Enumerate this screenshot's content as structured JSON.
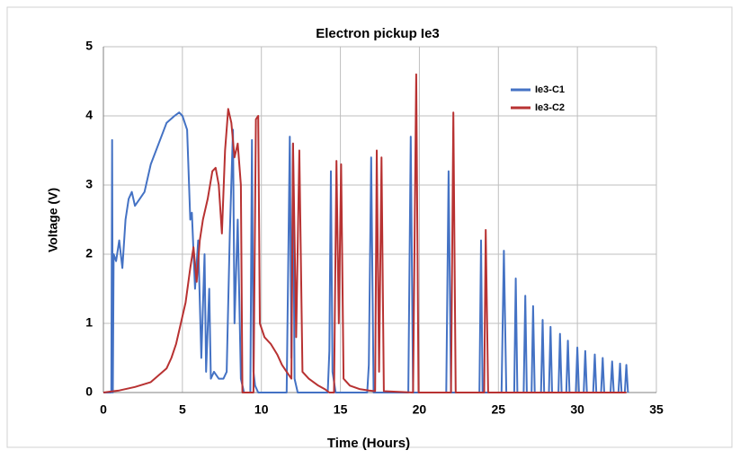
{
  "chart_data": {
    "type": "line",
    "title": "Electron pickup Ie3",
    "xlabel": "Time (Hours)",
    "ylabel": "Voltage (V)",
    "xlim": [
      0,
      35
    ],
    "xticks": [
      0,
      5,
      10,
      15,
      20,
      25,
      30,
      35
    ],
    "ylim": [
      0,
      5
    ],
    "yticks": [
      0,
      1,
      2,
      3,
      4,
      5
    ],
    "grid": true,
    "legend": "upper-right",
    "series": [
      {
        "name": "Ie3-C1",
        "color": "#4472c4",
        "x": [
          0,
          0.5,
          0.55,
          0.6,
          0.65,
          0.8,
          1.0,
          1.2,
          1.4,
          1.6,
          1.8,
          2.0,
          2.3,
          2.6,
          3.0,
          3.5,
          4.0,
          4.5,
          4.8,
          5.0,
          5.3,
          5.5,
          5.6,
          5.8,
          6.0,
          6.2,
          6.4,
          6.5,
          6.7,
          6.8,
          7.0,
          7.3,
          7.6,
          7.8,
          8.0,
          8.2,
          8.3,
          8.5,
          8.7,
          8.9,
          9.3,
          9.4,
          9.5,
          9.6,
          9.8,
          11.6,
          11.8,
          11.9,
          12.0,
          12.1,
          12.3,
          14.2,
          14.3,
          14.4,
          14.5,
          14.7,
          16.7,
          16.8,
          16.95,
          17.1,
          19.3,
          19.45,
          19.6,
          21.7,
          21.85,
          22.0,
          23.8,
          23.9,
          24.0,
          25.2,
          25.35,
          25.5,
          26.0,
          26.1,
          26.2,
          26.6,
          26.7,
          26.8,
          27.1,
          27.2,
          27.3,
          27.7,
          27.8,
          27.9,
          28.2,
          28.3,
          28.4,
          28.8,
          28.9,
          29.0,
          29.3,
          29.4,
          29.5,
          29.9,
          30.0,
          30.1,
          30.4,
          30.5,
          30.6,
          31.0,
          31.1,
          31.2,
          31.5,
          31.6,
          31.7,
          32.1,
          32.2,
          32.3,
          32.6,
          32.7,
          32.8,
          33.0,
          33.1,
          33.2
        ],
        "values": [
          0,
          0,
          3.65,
          0,
          2.0,
          1.9,
          2.2,
          1.8,
          2.5,
          2.8,
          2.9,
          2.7,
          2.8,
          2.9,
          3.3,
          3.6,
          3.9,
          4.0,
          4.05,
          4.0,
          3.8,
          2.5,
          2.6,
          1.5,
          2.2,
          0.5,
          2.0,
          0.3,
          1.5,
          0.2,
          0.3,
          0.2,
          0.2,
          0.3,
          2.3,
          3.8,
          1.0,
          2.5,
          0.2,
          0,
          0,
          3.65,
          0.3,
          0.1,
          0,
          0,
          3.7,
          0.5,
          3.6,
          0.2,
          0,
          0,
          0.6,
          3.2,
          0.3,
          0,
          0,
          0.4,
          3.4,
          0,
          0,
          3.7,
          0,
          0,
          3.2,
          0,
          0,
          2.2,
          0,
          0,
          2.05,
          0,
          0,
          1.65,
          0,
          0,
          1.4,
          0,
          0,
          1.25,
          0,
          0,
          1.05,
          0,
          0,
          0.95,
          0,
          0,
          0.85,
          0,
          0,
          0.75,
          0,
          0,
          0.65,
          0,
          0,
          0.6,
          0,
          0,
          0.55,
          0,
          0,
          0.5,
          0,
          0,
          0.45,
          0,
          0,
          0.42,
          0,
          0,
          0.4,
          0
        ]
      },
      {
        "name": "Ie3-C2",
        "color": "#b83232",
        "x": [
          0,
          1,
          2,
          3,
          3.5,
          4,
          4.3,
          4.6,
          4.9,
          5.2,
          5.5,
          5.7,
          5.9,
          6.1,
          6.3,
          6.6,
          6.9,
          7.1,
          7.3,
          7.5,
          7.7,
          7.9,
          8.1,
          8.3,
          8.5,
          8.7,
          8.8,
          9.5,
          9.65,
          9.8,
          9.9,
          10.2,
          10.6,
          11,
          11.3,
          11.6,
          11.9,
          12.0,
          12.2,
          12.4,
          12.6,
          13.0,
          13.6,
          14.0,
          14.3,
          14.6,
          14.75,
          14.9,
          15.05,
          15.2,
          15.6,
          16.2,
          16.8,
          17.2,
          17.3,
          17.45,
          17.6,
          17.75,
          19.6,
          19.8,
          19.95,
          22.0,
          22.15,
          22.3,
          24.1,
          24.2,
          24.35,
          33.1
        ],
        "values": [
          0,
          0.03,
          0.08,
          0.15,
          0.25,
          0.35,
          0.5,
          0.7,
          1.0,
          1.3,
          1.8,
          2.1,
          1.6,
          2.2,
          2.5,
          2.8,
          3.2,
          3.25,
          3.0,
          2.3,
          3.5,
          4.1,
          3.9,
          3.4,
          3.6,
          3.0,
          0,
          0,
          3.95,
          4.0,
          1.0,
          0.8,
          0.7,
          0.55,
          0.4,
          0.3,
          0.2,
          3.6,
          0.8,
          3.5,
          0.3,
          0.2,
          0.1,
          0.05,
          0,
          0,
          3.35,
          1.0,
          3.3,
          0.2,
          0.1,
          0.05,
          0.03,
          0.02,
          3.5,
          0.3,
          3.4,
          0.02,
          0,
          4.6,
          0,
          0,
          4.05,
          0,
          0,
          2.35,
          0,
          0
        ]
      }
    ]
  }
}
